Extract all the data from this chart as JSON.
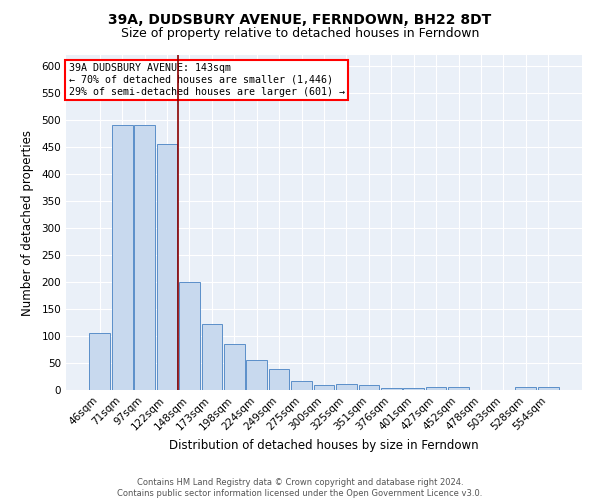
{
  "title": "39A, DUDSBURY AVENUE, FERNDOWN, BH22 8DT",
  "subtitle": "Size of property relative to detached houses in Ferndown",
  "xlabel": "Distribution of detached houses by size in Ferndown",
  "ylabel": "Number of detached properties",
  "categories": [
    "46sqm",
    "71sqm",
    "97sqm",
    "122sqm",
    "148sqm",
    "173sqm",
    "198sqm",
    "224sqm",
    "249sqm",
    "275sqm",
    "300sqm",
    "325sqm",
    "351sqm",
    "376sqm",
    "401sqm",
    "427sqm",
    "452sqm",
    "478sqm",
    "503sqm",
    "528sqm",
    "554sqm"
  ],
  "values": [
    105,
    490,
    490,
    455,
    200,
    122,
    85,
    55,
    38,
    16,
    10,
    11,
    10,
    3,
    3,
    5,
    5,
    0,
    0,
    6,
    6
  ],
  "bar_color": "#c8d9ee",
  "bar_edge_color": "#5b8fc9",
  "red_line_index": 4,
  "annotation_text": "39A DUDSBURY AVENUE: 143sqm\n← 70% of detached houses are smaller (1,446)\n29% of semi-detached houses are larger (601) →",
  "annotation_box_color": "white",
  "annotation_box_edge_color": "red",
  "footer_text": "Contains HM Land Registry data © Crown copyright and database right 2024.\nContains public sector information licensed under the Open Government Licence v3.0.",
  "ylim": [
    0,
    620
  ],
  "yticks": [
    0,
    50,
    100,
    150,
    200,
    250,
    300,
    350,
    400,
    450,
    500,
    550,
    600
  ],
  "bg_color": "#eaf0f8",
  "title_fontsize": 10,
  "subtitle_fontsize": 9,
  "axis_label_fontsize": 8.5,
  "tick_fontsize": 7.5,
  "footer_fontsize": 6
}
